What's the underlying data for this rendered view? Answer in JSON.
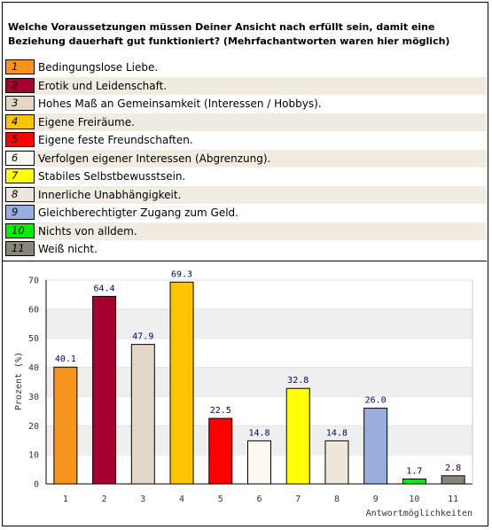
{
  "question": "Welche Voraussetzungen müssen Deiner Ansicht nach erfüllt sein, damit eine Beziehung dauerhaft gut funktioniert? (Mehrfachantworten waren hier möglich)",
  "legend": [
    {
      "num": "1",
      "label": "Bedingungslose Liebe.",
      "color": "#f7941d"
    },
    {
      "num": "2",
      "label": "Erotik und Leidenschaft.",
      "color": "#a3002e"
    },
    {
      "num": "3",
      "label": "Hohes Maß an Gemeinsamkeit (Interessen / Hobbys).",
      "color": "#e3d8c6"
    },
    {
      "num": "4",
      "label": "Eigene Freiräume.",
      "color": "#fec400"
    },
    {
      "num": "5",
      "label": "Eigene feste Freundschaften.",
      "color": "#ff0000"
    },
    {
      "num": "6",
      "label": "Verfolgen eigener Interessen (Abgrenzung).",
      "color": "#fbf9f0"
    },
    {
      "num": "7",
      "label": "Stabiles Selbstbewusstsein.",
      "color": "#ffff00"
    },
    {
      "num": "8",
      "label": "Innerliche Unabhängigkeit.",
      "color": "#ede6da"
    },
    {
      "num": "9",
      "label": "Gleichberechtigter Zugang zum Geld.",
      "color": "#9aaedd"
    },
    {
      "num": "10",
      "label": "Nichts von alldem.",
      "color": "#00ee00"
    },
    {
      "num": "11",
      "label": "Weiß nicht.",
      "color": "#8b8479"
    }
  ],
  "chart_data": {
    "type": "bar",
    "categories": [
      "1",
      "2",
      "3",
      "4",
      "5",
      "6",
      "7",
      "8",
      "9",
      "10",
      "11"
    ],
    "values": [
      40.1,
      64.4,
      47.9,
      69.3,
      22.5,
      14.8,
      32.8,
      14.8,
      26.0,
      1.7,
      2.8
    ],
    "value_labels": [
      "40.1",
      "64.4",
      "47.9",
      "69.3",
      "22.5",
      "14.8",
      "32.8",
      "14.8",
      "26.0",
      "1.7",
      "2.8"
    ],
    "colors": [
      "#f7941d",
      "#a3002e",
      "#e3d8c6",
      "#fec400",
      "#ff0000",
      "#fbf9f0",
      "#ffff00",
      "#ede6da",
      "#9aaedd",
      "#00ee00",
      "#8b8479"
    ],
    "ylabel": "Prozent (%)",
    "xlabel": "Antwortmöglichkeiten",
    "ylim": [
      0,
      70
    ],
    "yticks": [
      "0",
      "10",
      "20",
      "30",
      "40",
      "50",
      "60",
      "70"
    ],
    "grid": "horizontal bands",
    "value_label_color": "#000080"
  }
}
